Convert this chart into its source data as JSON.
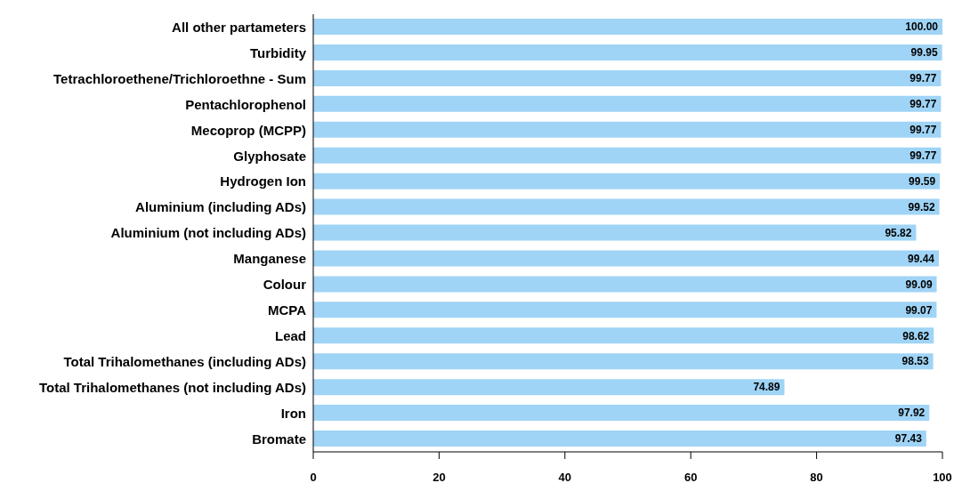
{
  "chart_data": {
    "type": "bar",
    "orientation": "horizontal",
    "categories": [
      "All other partameters",
      "Turbidity",
      "Tetrachloroethene/Trichloroethne - Sum",
      "Pentachlorophenol",
      "Mecoprop (MCPP)",
      "Glyphosate",
      "Hydrogen Ion",
      "Aluminium (including ADs)",
      "Aluminium (not including ADs)",
      "Manganese",
      "Colour",
      "MCPA",
      "Lead",
      "Total Trihalomethanes (including ADs)",
      "Total Trihalomethanes (not including ADs)",
      "Iron",
      "Bromate"
    ],
    "values": [
      100,
      99.95,
      99.77,
      99.77,
      99.77,
      99.77,
      99.59,
      99.52,
      95.82,
      99.44,
      99.09,
      99.07,
      98.62,
      98.53,
      74.89,
      97.92,
      97.43
    ],
    "value_labels": [
      "100.00",
      "99.95",
      "99.77",
      "99.77",
      "99.77",
      "99.77",
      "99.59",
      "99.52",
      "95.82",
      "99.44",
      "99.09",
      "99.07",
      "98.62",
      "98.53",
      "74.89",
      "97.92",
      "97.43"
    ],
    "color": "#9fd4f6",
    "xlim": [
      0,
      100
    ],
    "xticks": [
      0,
      20,
      40,
      60,
      80,
      100
    ],
    "grid": false,
    "legend": false
  }
}
